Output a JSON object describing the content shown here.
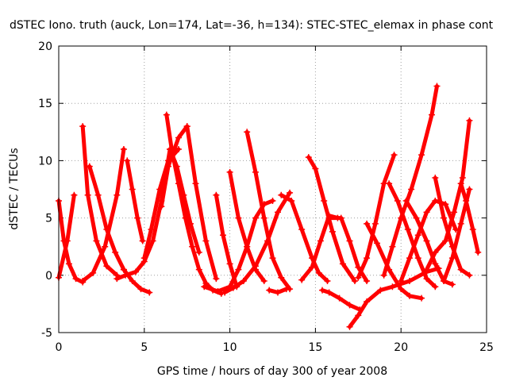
{
  "chart_data": {
    "type": "scatter",
    "title": "dSTEC Iono. truth (auck, Lon=174, Lat=-36, h=134): STEC-STEC_elemax in phase cont",
    "xlabel": "GPS time / hours of day 300 of year 2008",
    "ylabel": "dSTEC  / TECUs",
    "xlim": [
      0,
      25
    ],
    "ylim": [
      -5,
      20
    ],
    "xticks": [
      0,
      5,
      10,
      15,
      20,
      25
    ],
    "yticks": [
      -5,
      0,
      5,
      10,
      15,
      20
    ],
    "grid": true,
    "marker": "+",
    "color": "#ff0000",
    "series": [
      {
        "x": [
          0,
          0.3,
          0.6,
          1.0,
          1.4
        ],
        "y": [
          6.5,
          3,
          1,
          -0.3,
          -0.6
        ]
      },
      {
        "x": [
          0,
          0.5,
          0.9
        ],
        "y": [
          -0.2,
          3,
          7
        ]
      },
      {
        "x": [
          1.4,
          1.7,
          2.2,
          2.8,
          3.4
        ],
        "y": [
          13,
          7,
          3,
          0.8,
          0
        ]
      },
      {
        "x": [
          1.4,
          2.0,
          2.7,
          3.4,
          3.8
        ],
        "y": [
          -0.5,
          0.2,
          2.5,
          7,
          11
        ]
      },
      {
        "x": [
          1.8,
          2.3,
          2.8,
          3.3,
          3.8
        ],
        "y": [
          9.5,
          7,
          4,
          2,
          0.5
        ]
      },
      {
        "x": [
          3.8,
          4.3,
          4.8,
          5.3
        ],
        "y": [
          0.5,
          -0.5,
          -1.2,
          -1.5
        ]
      },
      {
        "x": [
          3.4,
          3.9,
          4.5,
          5.0,
          5.5,
          6.0,
          6.5
        ],
        "y": [
          -0.3,
          0,
          0.3,
          1.2,
          3,
          6.5,
          11
        ]
      },
      {
        "x": [
          4.0,
          4.3,
          4.6,
          4.9
        ],
        "y": [
          10,
          7.5,
          5,
          3
        ]
      },
      {
        "x": [
          6.3,
          6.6,
          7.0,
          7.4,
          7.8,
          8.2,
          8.6,
          9.0,
          9.5
        ],
        "y": [
          14,
          11,
          8,
          5,
          2.5,
          0.5,
          -0.7,
          -1.3,
          -1.6
        ]
      },
      {
        "x": [
          6.5,
          6.9,
          7.3,
          7.7,
          8.2
        ],
        "y": [
          11,
          9.5,
          7,
          4.5,
          2
        ]
      },
      {
        "x": [
          6.0,
          6.4,
          7.0,
          7.5
        ],
        "y": [
          6,
          9.5,
          12,
          13
        ]
      },
      {
        "x": [
          5.0,
          5.4,
          5.9,
          6.4,
          7.0
        ],
        "y": [
          1.5,
          4,
          7.5,
          10,
          11
        ]
      },
      {
        "x": [
          7.5,
          8.0,
          8.6,
          9.2
        ],
        "y": [
          13,
          8,
          3,
          -0.3
        ]
      },
      {
        "x": [
          9.2,
          9.6,
          10.0,
          10.4
        ],
        "y": [
          7,
          3.5,
          1,
          -1
        ]
      },
      {
        "x": [
          8.5,
          9.3,
          10.0,
          10.5,
          11.0,
          11.5,
          12.0,
          12.5
        ],
        "y": [
          -1,
          -1.4,
          -1,
          0.5,
          2.5,
          5,
          6.2,
          6.5
        ]
      },
      {
        "x": [
          10.0,
          10.5,
          11.0,
          11.5,
          12.0
        ],
        "y": [
          9,
          5,
          2.5,
          0.5,
          -0.5
        ]
      },
      {
        "x": [
          11.0,
          11.5,
          12.0,
          12.5,
          13.0,
          13.5
        ],
        "y": [
          12.5,
          9,
          5,
          1.5,
          -0.2,
          -1.2
        ]
      },
      {
        "x": [
          9.7,
          10.2,
          10.8,
          11.5,
          12.2,
          12.8,
          13.5
        ],
        "y": [
          -1.5,
          -1.1,
          -0.5,
          0.8,
          3,
          5.5,
          7.2
        ]
      },
      {
        "x": [
          12.3,
          12.8,
          13.3
        ],
        "y": [
          -1.3,
          -1.5,
          -1.2
        ]
      },
      {
        "x": [
          13.0,
          13.6,
          14.2,
          14.8,
          15.2,
          15.7
        ],
        "y": [
          7,
          6.5,
          4,
          1.5,
          0.2,
          -0.5
        ]
      },
      {
        "x": [
          14.2,
          14.8,
          15.3,
          15.8,
          16.3
        ],
        "y": [
          -0.4,
          0.7,
          3,
          5.2,
          5
        ]
      },
      {
        "x": [
          14.6,
          15.0,
          15.5,
          16.0,
          16.6,
          17.3
        ],
        "y": [
          10.3,
          9.3,
          6.5,
          3.8,
          1,
          -0.5
        ]
      },
      {
        "x": [
          15.4,
          15.8,
          16.4,
          17.0,
          17.6
        ],
        "y": [
          -1.3,
          -1.5,
          -2,
          -2.6,
          -3
        ]
      },
      {
        "x": [
          15.8,
          16.5,
          17.0,
          17.5,
          18.0
        ],
        "y": [
          5,
          5,
          3,
          0.7,
          -0.5
        ]
      },
      {
        "x": [
          17.0,
          17.5,
          18.0,
          18.8,
          19.5,
          20.5,
          21.5,
          22.2
        ],
        "y": [
          -4.5,
          -3.5,
          -2.3,
          -1.3,
          -1,
          -0.5,
          0.3,
          0.6
        ]
      },
      {
        "x": [
          17.5,
          18.0,
          18.5,
          19.0,
          19.6
        ],
        "y": [
          -0.2,
          1.5,
          4.5,
          8,
          10.5
        ]
      },
      {
        "x": [
          18.0,
          18.6,
          19.3,
          20.0,
          20.5,
          21.2
        ],
        "y": [
          4.5,
          2.8,
          0.5,
          -1.2,
          -1.8,
          -2
        ]
      },
      {
        "x": [
          19.0,
          19.5,
          20.0,
          20.6,
          21.2,
          21.8,
          22.1
        ],
        "y": [
          0,
          2.5,
          5,
          7.5,
          10.5,
          14,
          16.5
        ]
      },
      {
        "x": [
          19.3,
          19.8,
          20.4,
          21.0,
          21.5,
          22.0
        ],
        "y": [
          8,
          6.5,
          4,
          1.5,
          -0.3,
          -1
        ]
      },
      {
        "x": [
          20.0,
          20.5,
          21.0,
          21.5,
          22.0,
          22.6,
          23.2
        ],
        "y": [
          -0.5,
          1.5,
          3.5,
          5.5,
          6.5,
          6.2,
          4
        ]
      },
      {
        "x": [
          20.3,
          20.9,
          21.5,
          22.0,
          22.5,
          23.0
        ],
        "y": [
          6.5,
          5,
          3,
          1,
          -0.5,
          -0.8
        ]
      },
      {
        "x": [
          21.5,
          22.0,
          22.6,
          23.1,
          23.6,
          24.0
        ],
        "y": [
          0.5,
          2,
          3,
          5.5,
          8.5,
          13.5
        ]
      },
      {
        "x": [
          22.0,
          22.5,
          23.0,
          23.5,
          24.0
        ],
        "y": [
          8.5,
          5,
          2.5,
          0.5,
          0
        ]
      },
      {
        "x": [
          22.5,
          23.0,
          23.5,
          24.0
        ],
        "y": [
          -0.5,
          1.5,
          4.5,
          7.5
        ]
      },
      {
        "x": [
          23.5,
          23.8,
          24.2,
          24.5
        ],
        "y": [
          8,
          6.5,
          4,
          2
        ]
      }
    ]
  }
}
